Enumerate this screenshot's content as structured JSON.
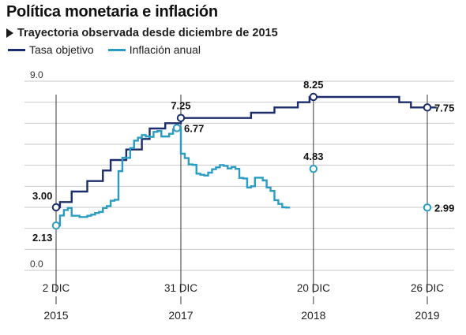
{
  "title": "Política monetaria e inflación",
  "subtitle": "Trayectoria observada desde diciembre de 2015",
  "colors": {
    "tasa": "#1b2d6b",
    "inflacion": "#2a9cc4"
  },
  "chart_data": {
    "type": "line",
    "title": "Política monetaria e inflación",
    "subtitle": "Trayectoria observada desde diciembre de 2015",
    "ylim": [
      0,
      9
    ],
    "yticks": [
      {
        "value": 9,
        "label": "9.0"
      },
      {
        "value": 0,
        "label": "0.0"
      }
    ],
    "xlim": [
      0,
      48.8
    ],
    "legend": "top-left",
    "grid": true,
    "series": [
      {
        "name": "Tasa objetivo",
        "step": true,
        "points": [
          [
            0.0,
            3.0
          ],
          [
            0.5,
            3.25
          ],
          [
            2.0,
            3.75
          ],
          [
            4.0,
            4.25
          ],
          [
            6.0,
            4.75
          ],
          [
            7.0,
            5.25
          ],
          [
            9.0,
            5.75
          ],
          [
            11.0,
            6.25
          ],
          [
            12.0,
            6.75
          ],
          [
            14.0,
            7.0
          ],
          [
            16.0,
            7.25
          ],
          [
            25.0,
            7.5
          ],
          [
            28.0,
            7.75
          ],
          [
            31.0,
            8.0
          ],
          [
            32.5,
            8.25
          ],
          [
            44.0,
            8.0
          ],
          [
            45.5,
            7.75
          ],
          [
            48.8,
            7.75
          ]
        ]
      },
      {
        "name": "Inflación anual",
        "step": true,
        "points": [
          [
            0.0,
            2.13
          ],
          [
            0.5,
            2.61
          ],
          [
            1.0,
            2.87
          ],
          [
            1.5,
            2.97
          ],
          [
            2.0,
            2.6
          ],
          [
            2.5,
            2.6
          ],
          [
            3.0,
            2.54
          ],
          [
            3.5,
            2.54
          ],
          [
            4.0,
            2.6
          ],
          [
            4.5,
            2.65
          ],
          [
            5.0,
            2.73
          ],
          [
            5.5,
            2.78
          ],
          [
            6.0,
            2.97
          ],
          [
            6.5,
            3.06
          ],
          [
            7.0,
            3.31
          ],
          [
            7.5,
            3.36
          ],
          [
            8.0,
            4.72
          ],
          [
            8.5,
            5.36
          ],
          [
            9.0,
            5.35
          ],
          [
            9.5,
            5.82
          ],
          [
            10.0,
            6.17
          ],
          [
            10.5,
            6.31
          ],
          [
            11.0,
            6.44
          ],
          [
            11.5,
            6.37
          ],
          [
            12.0,
            6.35
          ],
          [
            12.5,
            6.59
          ],
          [
            13.0,
            6.63
          ],
          [
            13.5,
            6.37
          ],
          [
            14.0,
            6.37
          ],
          [
            14.5,
            6.5
          ],
          [
            15.0,
            6.71
          ],
          [
            15.5,
            6.77
          ],
          [
            16.0,
            5.55
          ],
          [
            16.5,
            5.34
          ],
          [
            17.0,
            5.04
          ],
          [
            17.5,
            5.02
          ],
          [
            18.0,
            4.6
          ],
          [
            18.5,
            4.55
          ],
          [
            19.0,
            4.51
          ],
          [
            19.5,
            4.65
          ],
          [
            20.0,
            4.81
          ],
          [
            20.5,
            4.9
          ],
          [
            21.0,
            5.01
          ],
          [
            21.5,
            4.97
          ],
          [
            22.0,
            4.85
          ],
          [
            22.5,
            4.92
          ],
          [
            23.0,
            4.83
          ],
          [
            23.5,
            4.4
          ],
          [
            24.0,
            4.37
          ],
          [
            24.5,
            3.94
          ],
          [
            25.0,
            4.0
          ],
          [
            25.5,
            4.41
          ],
          [
            26.0,
            4.41
          ],
          [
            26.5,
            4.28
          ],
          [
            27.0,
            3.94
          ],
          [
            27.5,
            3.78
          ],
          [
            28.0,
            3.34
          ],
          [
            28.5,
            3.16
          ],
          [
            29.0,
            3.0
          ],
          [
            29.5,
            2.99
          ],
          [
            30.0,
            2.99
          ]
        ]
      }
    ],
    "annotations": [
      {
        "series": "Tasa objetivo",
        "x": 0.0,
        "y": 3.0,
        "label": "3.00",
        "position": "above-left"
      },
      {
        "series": "Inflación anual",
        "x": 0.0,
        "y": 2.13,
        "label": "2.13",
        "position": "below-left"
      },
      {
        "series": "Tasa objetivo",
        "x": 16.0,
        "y": 7.25,
        "label": "7.25",
        "position": "above"
      },
      {
        "series": "Inflación anual",
        "x": 15.5,
        "y": 6.77,
        "label": "6.77",
        "position": "right"
      },
      {
        "series": "Tasa objetivo",
        "x": 33.0,
        "y": 8.25,
        "label": "8.25",
        "position": "above"
      },
      {
        "series": "Inflación anual",
        "x": 33.0,
        "y": 4.83,
        "label": "4.83",
        "position": "above"
      },
      {
        "series": "Tasa objetivo",
        "x": 47.6,
        "y": 7.75,
        "label": "7.75",
        "position": "right"
      },
      {
        "series": "Inflación anual",
        "x": 47.6,
        "y": 2.99,
        "label": "2.99",
        "position": "right"
      }
    ],
    "date_markers": [
      {
        "x": 0.0,
        "date": "2 DIC",
        "year": "2015"
      },
      {
        "x": 16.0,
        "date": "31 DIC",
        "year": "2017"
      },
      {
        "x": 33.0,
        "date": "20 DIC",
        "year": "2018"
      },
      {
        "x": 47.6,
        "date": "26 DIC",
        "year": "2019"
      }
    ]
  }
}
